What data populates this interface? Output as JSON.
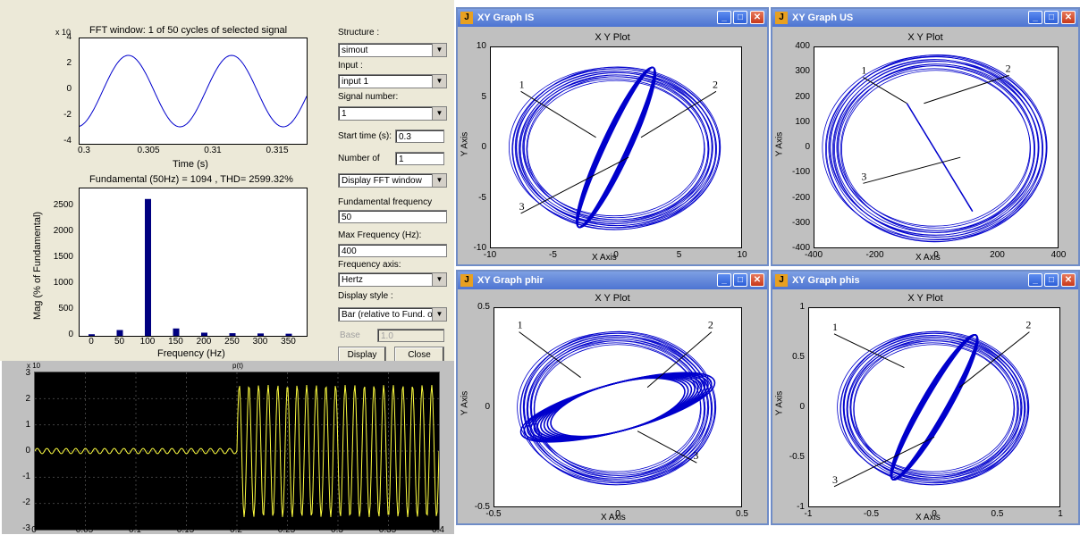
{
  "fft": {
    "time_title": "FFT window: 1 of 50 cycles of selected signal",
    "time_exponent": "x 10",
    "time_yticks": [
      "4",
      "2",
      "0",
      "-2",
      "-4"
    ],
    "time_xticks": [
      "0.3",
      "0.305",
      "0.31",
      "0.315"
    ],
    "time_xlabel": "Time (s)",
    "spectrum_title": "Fundamental (50Hz) = 1094 , THD= 2599.32%",
    "spectrum_yticks": [
      "2500",
      "2000",
      "1500",
      "1000",
      "500",
      "0"
    ],
    "spectrum_xticks": [
      "0",
      "50",
      "100",
      "150",
      "200",
      "250",
      "300",
      "350"
    ],
    "spectrum_xlabel": "Frequency (Hz)",
    "spectrum_ylabel": "Mag (% of Fundamental)",
    "spectrum_values": [
      30,
      110,
      2600,
      140,
      60,
      50,
      45,
      40
    ]
  },
  "controls": {
    "structure_label": "Structure :",
    "structure_value": "simout",
    "input_label": "Input :",
    "input_value": "input 1",
    "signal_label": "Signal number:",
    "signal_value": "1",
    "start_label": "Start time (s):",
    "start_value": "0.3",
    "cycles_label": "Number of",
    "cycles_value": "1",
    "display_mode_value": "Display FFT window",
    "fund_label": "Fundamental frequency",
    "fund_value": "50",
    "maxfreq_label": "Max Frequency (Hz):",
    "maxfreq_value": "400",
    "freqaxis_label": "Frequency axis:",
    "freqaxis_value": "Hertz",
    "style_label": "Display style :",
    "style_value": "Bar (relative to Fund. or D",
    "base_label": "Base",
    "base_value": "1.0",
    "display_button": "Display",
    "close_button": "Close"
  },
  "scope": {
    "title": "p(t)",
    "exponent": "x 10",
    "yticks": [
      "3",
      "2",
      "1",
      "0",
      "-1",
      "-2",
      "-3"
    ],
    "xticks": [
      "0",
      "0.05",
      "0.1",
      "0.15",
      "0.2",
      "0.25",
      "0.3",
      "0.35",
      "0.4"
    ]
  },
  "xy_windows": [
    {
      "title": "XY Graph IS",
      "plot_title": "X Y Plot",
      "xlabel": "X Axis",
      "ylabel": "Y Axis",
      "xticks": [
        "-10",
        "-5",
        "0",
        "5",
        "10"
      ],
      "yticks": [
        "10",
        "5",
        "0",
        "-5",
        "-10"
      ],
      "callouts": [
        "1",
        "2",
        "3"
      ]
    },
    {
      "title": "XY Graph US",
      "plot_title": "X Y Plot",
      "xlabel": "X Axis",
      "ylabel": "Y Axis",
      "xticks": [
        "-400",
        "-200",
        "0",
        "200",
        "400"
      ],
      "yticks": [
        "400",
        "300",
        "200",
        "100",
        "0",
        "-100",
        "-200",
        "-300",
        "-400"
      ],
      "callouts": [
        "1",
        "2",
        "3"
      ]
    },
    {
      "title": "XY Graph phir",
      "plot_title": "X Y Plot",
      "xlabel": "X Axis",
      "ylabel": "Y Axis",
      "xticks": [
        "-0.5",
        "0",
        "0.5"
      ],
      "yticks": [
        "0.5",
        "0",
        "-0.5"
      ],
      "callouts": [
        "1",
        "2",
        "3"
      ]
    },
    {
      "title": "XY Graph phis",
      "plot_title": "X Y Plot",
      "xlabel": "X Axis",
      "ylabel": "Y Axis",
      "xticks": [
        "-1",
        "-0.5",
        "0",
        "0.5",
        "1"
      ],
      "yticks": [
        "1",
        "0.5",
        "0",
        "-0.5",
        "-1"
      ],
      "callouts": [
        "1",
        "2",
        "3"
      ]
    }
  ],
  "colors": {
    "trace": "#0000cc",
    "bar": "#000080",
    "scope_trace": "#ffff40",
    "titlebar": "#4d74d2"
  }
}
